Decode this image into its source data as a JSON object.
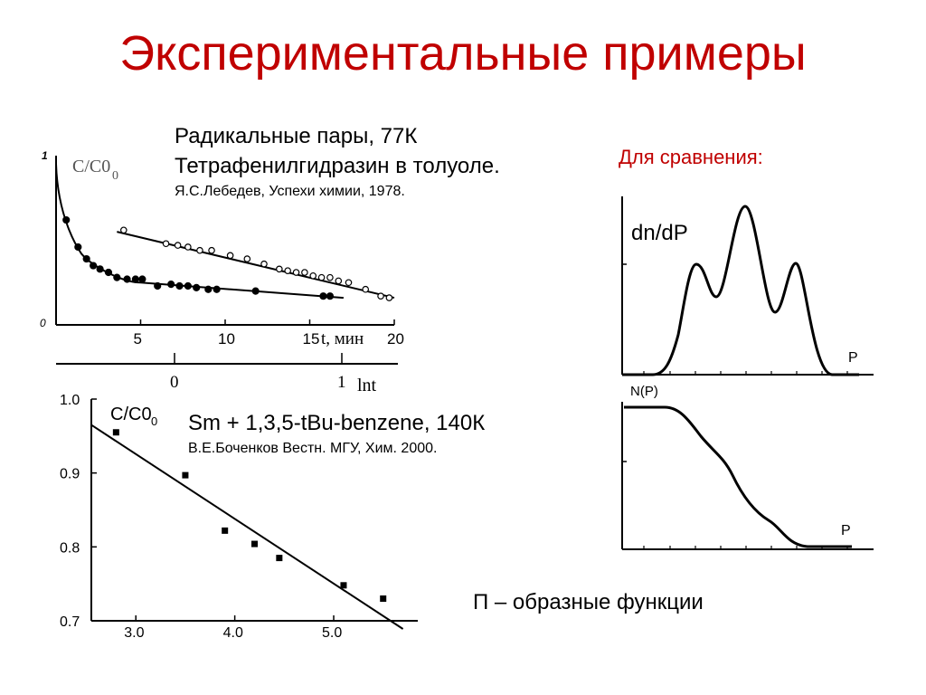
{
  "slide": {
    "title": "Экспериментальные примеры",
    "caption_radical_1": "Радикальные пары,  77К",
    "caption_radical_2": "Тетрафенилгидразин в толуоле.",
    "caption_radical_3": "Я.С.Лебедев, Успехи химии, 1978.",
    "caption_compare": "Для сравнения:",
    "caption_sm_1": "Sm + 1,3,5-tBu-benzene,  140К",
    "caption_sm_2": "В.Е.Боченков Вестн. МГУ, Хим. 2000.",
    "caption_bottom": "П – образные функции"
  },
  "chart_data": [
    {
      "type": "scatter",
      "ylabel": "C/C0",
      "xlabel": "t, мин",
      "secondary_xlabel": "lnt",
      "y_ticks": [
        "1",
        "0"
      ],
      "x_ticks": [
        "5",
        "10",
        "15",
        "20"
      ],
      "secondary_x_ticks": [
        "0",
        "1"
      ],
      "xlim": [
        0,
        20
      ],
      "ylim": [
        0,
        1
      ],
      "series": [
        {
          "marker": "open-circle",
          "points": [
            [
              4,
              0.56
            ],
            [
              6.5,
              0.48
            ],
            [
              7.2,
              0.47
            ],
            [
              7.8,
              0.46
            ],
            [
              8.5,
              0.44
            ],
            [
              9.2,
              0.44
            ],
            [
              10.3,
              0.41
            ],
            [
              11.3,
              0.39
            ],
            [
              12.3,
              0.36
            ],
            [
              13.2,
              0.33
            ],
            [
              13.7,
              0.32
            ],
            [
              14.2,
              0.31
            ],
            [
              14.7,
              0.31
            ],
            [
              15.2,
              0.29
            ],
            [
              15.7,
              0.28
            ],
            [
              16.2,
              0.28
            ],
            [
              16.7,
              0.26
            ],
            [
              17.3,
              0.25
            ],
            [
              18.3,
              0.21
            ],
            [
              19.2,
              0.17
            ],
            [
              19.7,
              0.16
            ]
          ],
          "fit": [
            [
              3.6,
              0.55
            ],
            [
              20,
              0.16
            ]
          ]
        },
        {
          "marker": "filled-circle",
          "points": [
            [
              0.6,
              0.62
            ],
            [
              1.3,
              0.46
            ],
            [
              1.8,
              0.39
            ],
            [
              2.2,
              0.35
            ],
            [
              2.6,
              0.33
            ],
            [
              3.1,
              0.31
            ],
            [
              3.6,
              0.28
            ],
            [
              4.2,
              0.27
            ],
            [
              4.7,
              0.27
            ],
            [
              5.1,
              0.27
            ],
            [
              6,
              0.23
            ],
            [
              6.8,
              0.24
            ],
            [
              7.3,
              0.23
            ],
            [
              7.8,
              0.23
            ],
            [
              8.3,
              0.22
            ],
            [
              9,
              0.21
            ],
            [
              9.5,
              0.21
            ],
            [
              11.8,
              0.2
            ],
            [
              15.8,
              0.17
            ],
            [
              16.2,
              0.17
            ]
          ],
          "fit": [
            [
              0,
              0.95
            ],
            [
              1.5,
              0.42
            ],
            [
              5,
              0.25
            ],
            [
              17,
              0.16
            ]
          ]
        }
      ]
    },
    {
      "type": "scatter",
      "ylabel": "C/C0",
      "y_ticks": [
        "1.0",
        "0.9",
        "0.8",
        "0.7"
      ],
      "x_ticks": [
        "3.0",
        "4.0",
        "5.0"
      ],
      "xlim": [
        2.55,
        5.85
      ],
      "ylim": [
        0.7,
        1.0
      ],
      "points": [
        [
          2.8,
          0.955
        ],
        [
          3.5,
          0.897
        ],
        [
          3.9,
          0.822
        ],
        [
          4.2,
          0.804
        ],
        [
          4.45,
          0.785
        ],
        [
          5.1,
          0.748
        ],
        [
          5.5,
          0.73
        ]
      ],
      "fit": [
        [
          2.55,
          0.965
        ],
        [
          5.7,
          0.689
        ]
      ]
    },
    {
      "type": "line",
      "ylabel": "dn/dP",
      "xlabel": "P",
      "description_only": false
    },
    {
      "type": "line",
      "ylabel": "N(P)",
      "xlabel": "P"
    }
  ]
}
